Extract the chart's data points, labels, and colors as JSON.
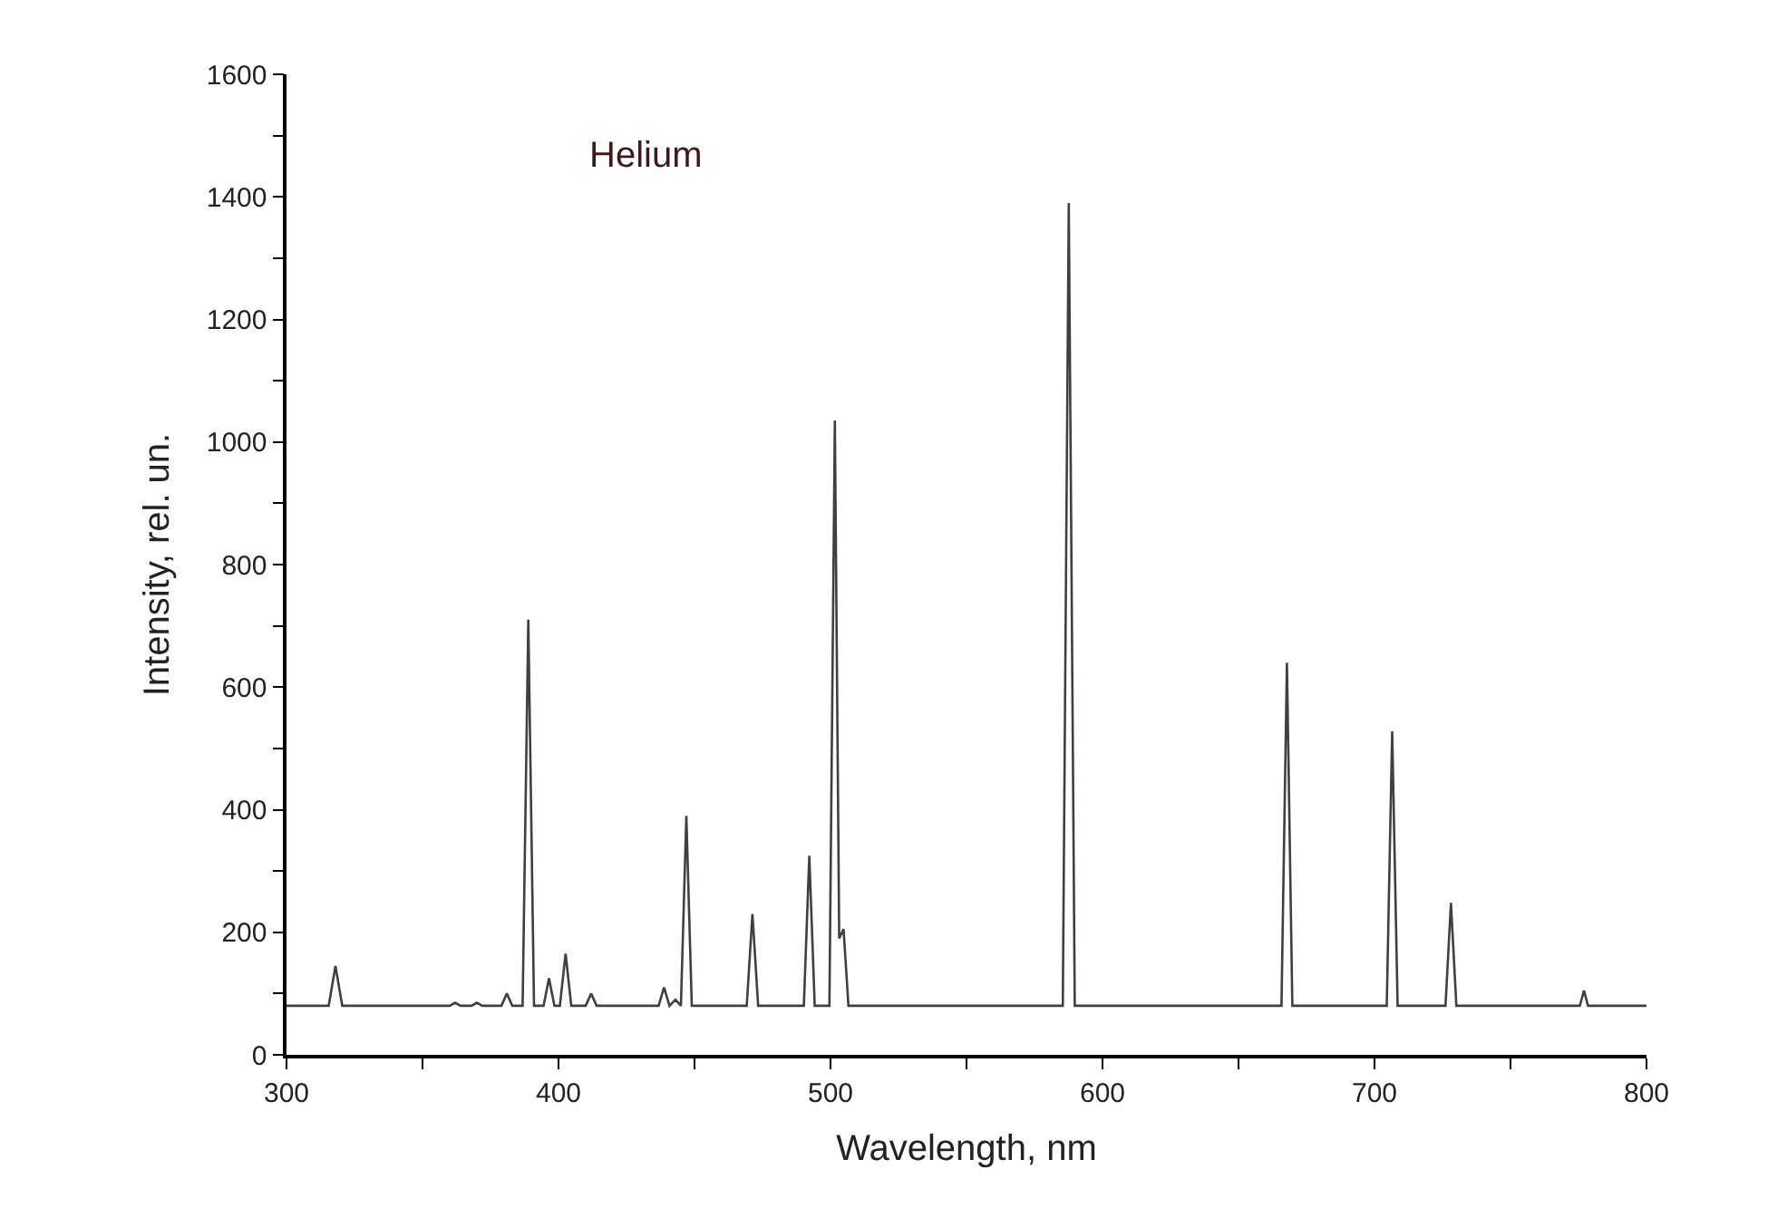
{
  "chart_data": {
    "type": "line",
    "xlabel": "Wavelength, nm",
    "ylabel": "Intensity, rel. un.",
    "annotations": [
      "Helium"
    ],
    "series": [
      {
        "color": "#404040",
        "x": [
          300,
          315.5,
          318,
          320.5,
          360,
          362,
          364,
          368,
          370,
          372,
          379,
          381,
          383,
          386.8,
          388.9,
          391,
          394.5,
          396.5,
          398.5,
          400.5,
          402.6,
          404.7,
          410,
          412,
          414,
          436.8,
          438.8,
          440.8,
          443,
          445,
          447,
          449,
          469.2,
          471.3,
          473.4,
          490.2,
          492.2,
          494.2,
          499.6,
          501.6,
          503.2,
          504.8,
          506.6,
          585.4,
          587.6,
          589.8,
          665.8,
          667.8,
          669.8,
          704.5,
          706.5,
          708.5,
          726.1,
          728.1,
          730.1,
          775.5,
          777,
          778.5,
          800
        ],
        "values": [
          80,
          80,
          145,
          80,
          80,
          85,
          80,
          80,
          85,
          80,
          80,
          100,
          80,
          80,
          710,
          80,
          80,
          125,
          80,
          80,
          165,
          80,
          80,
          100,
          80,
          80,
          110,
          80,
          90,
          80,
          390,
          80,
          80,
          230,
          80,
          80,
          325,
          80,
          80,
          1035,
          190,
          205,
          80,
          80,
          1390,
          80,
          80,
          640,
          80,
          80,
          528,
          80,
          80,
          248,
          80,
          80,
          105,
          80,
          80
        ]
      }
    ],
    "xlim": [
      300,
      800
    ],
    "ylim": [
      0,
      1600
    ],
    "xticks": [
      300,
      {
        "value": 350,
        "label": null
      },
      400,
      {
        "value": 450,
        "label": null
      },
      500,
      {
        "value": 550,
        "label": null
      },
      600,
      {
        "value": 650,
        "label": null
      },
      700,
      {
        "value": 750,
        "label": null
      },
      800
    ],
    "yticks": [
      0,
      {
        "value": 100,
        "label": null
      },
      200,
      {
        "value": 300,
        "label": null
      },
      400,
      {
        "value": 500,
        "label": null
      },
      600,
      {
        "value": 700,
        "label": null
      },
      800,
      {
        "value": 900,
        "label": null
      },
      1000,
      {
        "value": 1100,
        "label": null
      },
      1200,
      {
        "value": 1300,
        "label": null
      },
      1400,
      {
        "value": 1500,
        "label": null
      },
      1600
    ],
    "marker": "none",
    "line_style": "solid"
  }
}
